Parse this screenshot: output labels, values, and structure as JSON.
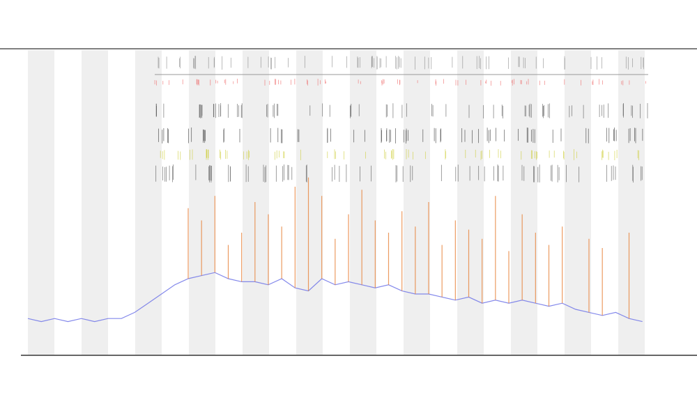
{
  "chart_data": {
    "type": "line",
    "x": [
      0,
      2,
      4,
      6,
      8,
      10,
      12,
      14,
      16,
      18,
      20,
      22,
      24,
      26,
      28,
      30,
      32,
      34,
      36,
      38,
      40,
      42,
      44,
      46,
      48,
      50,
      52,
      54,
      56,
      58,
      60,
      62,
      64,
      66,
      68,
      70,
      72,
      74,
      76,
      78,
      80,
      82,
      84,
      86,
      88,
      90,
      92
    ],
    "xlim": [
      0,
      96
    ],
    "ylim": [
      0,
      100
    ],
    "series": [
      {
        "color": "#6f74e8",
        "values": [
          12,
          11,
          12,
          11,
          12,
          11,
          12,
          12,
          14,
          17,
          20,
          23,
          25,
          26,
          27,
          25,
          24,
          24,
          23,
          25,
          22,
          21,
          25,
          23,
          24,
          23,
          22,
          23,
          21,
          20,
          20,
          19,
          18,
          19,
          17,
          18,
          17,
          18,
          17,
          16,
          17,
          15,
          14,
          13,
          14,
          12,
          11
        ]
      },
      {
        "color": "#e8833a",
        "marker": "stem",
        "values": [
          null,
          null,
          null,
          null,
          null,
          null,
          null,
          null,
          null,
          null,
          null,
          null,
          48,
          44,
          52,
          36,
          40,
          50,
          46,
          42,
          55,
          58,
          52,
          38,
          46,
          54,
          44,
          40,
          47,
          42,
          50,
          36,
          44,
          41,
          38,
          52,
          34,
          46,
          40,
          36,
          42,
          null,
          38,
          35,
          null,
          40,
          null
        ]
      }
    ]
  }
}
